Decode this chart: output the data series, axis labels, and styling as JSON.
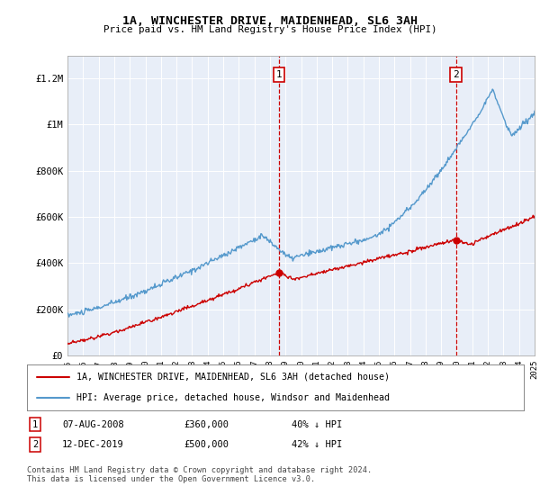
{
  "title": "1A, WINCHESTER DRIVE, MAIDENHEAD, SL6 3AH",
  "subtitle": "Price paid vs. HM Land Registry's House Price Index (HPI)",
  "ylim": [
    0,
    1300000
  ],
  "yticks": [
    0,
    200000,
    400000,
    600000,
    800000,
    1000000,
    1200000
  ],
  "ytick_labels": [
    "£0",
    "£200K",
    "£400K",
    "£600K",
    "£800K",
    "£1M",
    "£1.2M"
  ],
  "background_color": "#ffffff",
  "plot_bg_color": "#e8eef8",
  "hpi_color": "#5599cc",
  "price_color": "#cc0000",
  "sale1_x": 2008.6,
  "sale1_y": 360000,
  "sale2_x": 2019.95,
  "sale2_y": 500000,
  "legend_line1": "1A, WINCHESTER DRIVE, MAIDENHEAD, SL6 3AH (detached house)",
  "legend_line2": "HPI: Average price, detached house, Windsor and Maidenhead",
  "footer": "Contains HM Land Registry data © Crown copyright and database right 2024.\nThis data is licensed under the Open Government Licence v3.0.",
  "table_row1": [
    "1",
    "07-AUG-2008",
    "£360,000",
    "40% ↓ HPI"
  ],
  "table_row2": [
    "2",
    "12-DEC-2019",
    "£500,000",
    "42% ↓ HPI"
  ],
  "xmin": 1995,
  "xmax": 2025,
  "xticks": [
    1995,
    1996,
    1997,
    1998,
    1999,
    2000,
    2001,
    2002,
    2003,
    2004,
    2005,
    2006,
    2007,
    2008,
    2009,
    2010,
    2011,
    2012,
    2013,
    2014,
    2015,
    2016,
    2017,
    2018,
    2019,
    2020,
    2021,
    2022,
    2023,
    2024,
    2025
  ]
}
